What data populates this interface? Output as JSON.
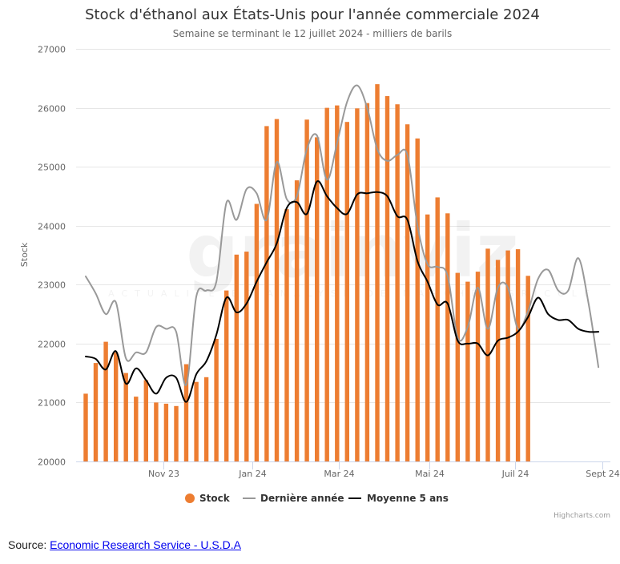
{
  "chart_data": {
    "type": "bar",
    "title": "Stock d'éthanol aux États-Unis pour l'année commerciale 2024",
    "subtitle": "Semaine se terminant le 12 juillet 2024 - milliers de barils",
    "xlabel": "",
    "ylabel": "Stock",
    "ylim": [
      20000,
      27000
    ],
    "y_ticks": [
      "20000",
      "21000",
      "22000",
      "23000",
      "24000",
      "25000",
      "26000",
      "27000"
    ],
    "y_tick_values": [
      20000,
      21000,
      22000,
      23000,
      24000,
      25000,
      26000,
      27000
    ],
    "x_ticks": [
      "Nov 23",
      "Jan 24",
      "Mar 24",
      "Mai 24",
      "Juil 24",
      "Sept 24"
    ],
    "x_tick_weeks": [
      7.7,
      16.6,
      25.2,
      34.2,
      42.7,
      51.4
    ],
    "grid": true,
    "legend_position": "bottom-center",
    "weeks_total": 52,
    "series": [
      {
        "name": "Stock",
        "type": "bar",
        "color": "#ed7d31",
        "values": [
          21150,
          21670,
          22030,
          21850,
          21500,
          21100,
          21380,
          21000,
          20980,
          20940,
          21650,
          21350,
          21430,
          22080,
          22900,
          23510,
          23560,
          24370,
          25690,
          25810,
          24280,
          24770,
          25800,
          25500,
          26000,
          26040,
          25760,
          25990,
          26080,
          26400,
          26200,
          26060,
          25720,
          25480,
          24190,
          24480,
          24210,
          23200,
          23050,
          23220,
          23610,
          23420,
          23580,
          23600,
          23150
        ]
      },
      {
        "name": "Dernière année",
        "type": "line",
        "color": "#999999",
        "values": [
          23140,
          22850,
          22500,
          22700,
          21750,
          21850,
          21850,
          22280,
          22250,
          22200,
          21300,
          22800,
          22900,
          23050,
          24390,
          24100,
          24620,
          24550,
          24100,
          25080,
          24450,
          24500,
          25300,
          25530,
          24780,
          25400,
          26100,
          26380,
          26000,
          25300,
          25100,
          25200,
          25200,
          24000,
          23350,
          23300,
          23150,
          22100,
          22280,
          22950,
          22250,
          22950,
          22950,
          22250,
          22550,
          23100,
          23250,
          22900,
          22900,
          23450,
          22700,
          21600
        ]
      },
      {
        "name": "Moyenne 5 ans",
        "type": "line",
        "color": "#000000",
        "values": [
          21780,
          21740,
          21560,
          21870,
          21320,
          21580,
          21380,
          21150,
          21420,
          21420,
          21010,
          21480,
          21700,
          22150,
          22780,
          22530,
          22680,
          23050,
          23380,
          23700,
          24300,
          24400,
          24200,
          24750,
          24500,
          24300,
          24200,
          24530,
          24550,
          24570,
          24500,
          24160,
          24100,
          23400,
          23050,
          22660,
          22680,
          22050,
          22000,
          22000,
          21800,
          22050,
          22100,
          22200,
          22450,
          22780,
          22500,
          22400,
          22400,
          22250,
          22200,
          22200
        ]
      }
    ]
  },
  "watermark": {
    "logo": "grainviz",
    "tagline": "ACTUALITÉ ET ANALYSE DE MARCHÉ AGRICOLE"
  },
  "credits": "Highcharts.com",
  "source": {
    "label": "Source: ",
    "link_text": "Economic Research Service - U.S.D.A"
  }
}
